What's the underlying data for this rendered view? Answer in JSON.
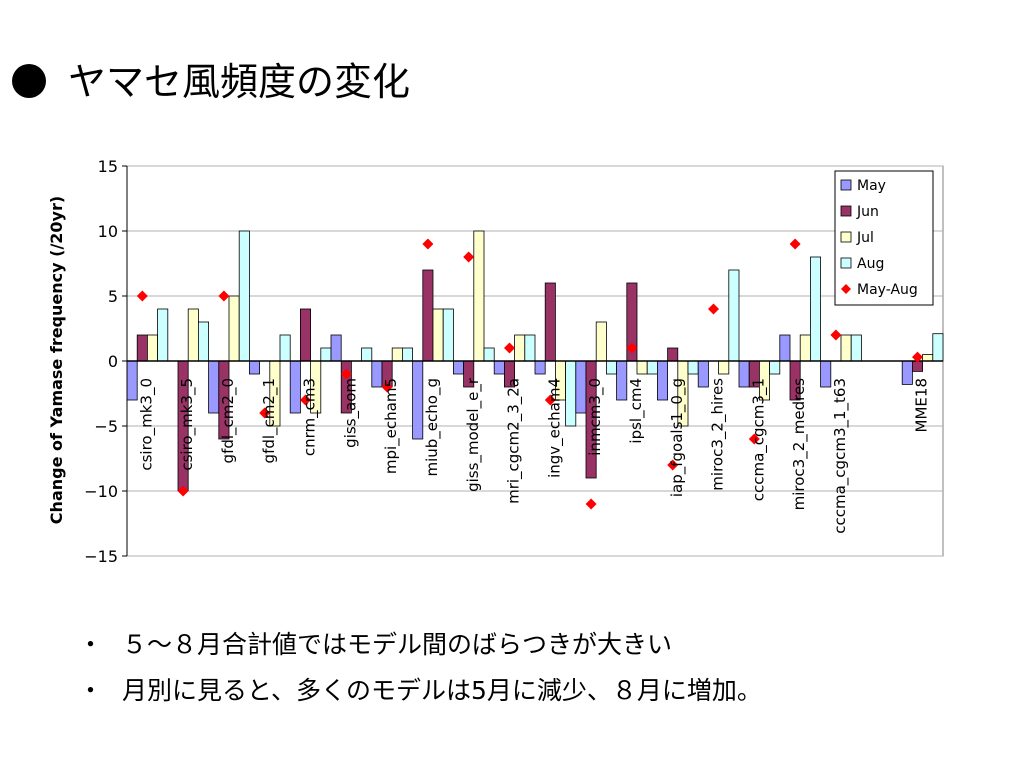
{
  "slide": {
    "title": "ヤマセ風頻度の変化",
    "bullets": [
      "５～８月合計値ではモデル間のばらつきが大きい",
      "月別に見ると、多くのモデルは5月に減少、８月に増加。"
    ],
    "bullet_mark": "・"
  },
  "chart_data": {
    "type": "bar",
    "ylabel": "Change of Yamase frequency (/20yr)",
    "xlabel": "",
    "ylim": [
      -15,
      15
    ],
    "yticks": [
      15,
      10,
      5,
      0,
      -5,
      -10,
      -15
    ],
    "ytick_labels": [
      "15",
      "10",
      "5",
      "0",
      "−5",
      "−10",
      "−15"
    ],
    "grid": true,
    "legend_position": "top-right",
    "categories": [
      "csiro_mk3_0",
      "csiro_mk3_5",
      "gfdl_cm2_0",
      "gfdl_cm2_1",
      "cnrm_cm3",
      "giss_aom",
      "mpi_echam5",
      "miub_echo_g",
      "giss_model_e_r",
      "mri_cgcm2_3_2a",
      "ingv_echam4",
      "inmcm3_0",
      "ipsl_cm4",
      "iap_fgoals1_0_g",
      "miroc3_2_hires",
      "cccma_cgcm3_1",
      "miroc3_2_medres",
      "cccma_cgcm3_1_t63",
      "",
      "MME18"
    ],
    "series": [
      {
        "name": "May",
        "kind": "bar",
        "color": "#9999ff",
        "values": [
          -3,
          0,
          -4,
          -1,
          -4,
          2,
          -2,
          -6,
          -1,
          -1,
          -1,
          -4,
          -3,
          -3,
          -2,
          -2,
          2,
          -2,
          null,
          -1.8
        ]
      },
      {
        "name": "Jun",
        "kind": "bar",
        "color": "#993366",
        "values": [
          2,
          -10,
          -6,
          0,
          4,
          -4,
          -2,
          7,
          -2,
          -2,
          6,
          -9,
          6,
          1,
          0,
          -2,
          -3,
          0,
          null,
          -0.8
        ]
      },
      {
        "name": "Jul",
        "kind": "bar",
        "color": "#ffffcc",
        "values": [
          2,
          4,
          5,
          -5,
          -4,
          0,
          1,
          4,
          10,
          2,
          -3,
          3,
          -1,
          -5,
          -1,
          -3,
          2,
          2,
          null,
          0.5
        ]
      },
      {
        "name": "Aug",
        "kind": "bar",
        "color": "#ccffff",
        "values": [
          4,
          3,
          10,
          2,
          1,
          1,
          1,
          4,
          1,
          2,
          -5,
          -1,
          -1,
          -1,
          7,
          -1,
          8,
          2,
          null,
          2.1
        ]
      },
      {
        "name": "May-Aug",
        "kind": "point",
        "color": "#ff0000",
        "values": [
          5,
          -10,
          5,
          -4,
          -3,
          -1,
          -2,
          9,
          8,
          1,
          -3,
          -11,
          1,
          -8,
          4,
          -6,
          9,
          2,
          null,
          0.3
        ]
      }
    ]
  }
}
